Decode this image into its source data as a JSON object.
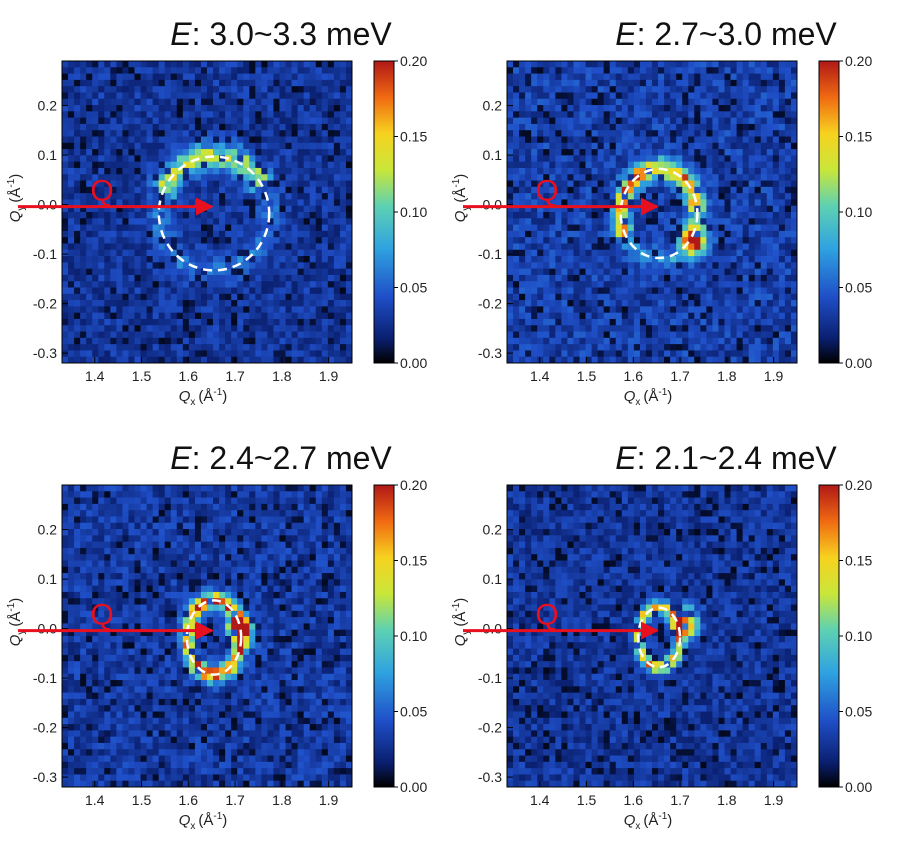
{
  "chart_data": [
    {
      "type": "heatmap",
      "title_prefix": "E",
      "title_range": ": 3.0~3.3 meV",
      "xlabel_main": "Q",
      "xlabel_sub": "x",
      "xlabel_unit": "(Å",
      "xlabel_exp": "-1",
      "xlabel_close": ")",
      "ylabel_main": "Q",
      "ylabel_sub": "y",
      "ylabel_unit": "(Å",
      "ylabel_exp": "-1",
      "ylabel_close": ")",
      "xlim": [
        1.33,
        1.95
      ],
      "ylim": [
        -0.32,
        0.29
      ],
      "xticks": [
        1.4,
        1.5,
        1.6,
        1.7,
        1.8,
        1.9
      ],
      "xtick_labels": [
        "1.4",
        "1.5",
        "1.6",
        "1.7",
        "1.8",
        "1.9"
      ],
      "yticks": [
        0.2,
        0.1,
        0.0,
        -0.1,
        -0.2,
        -0.3
      ],
      "ytick_labels": [
        "0.2",
        "0.1",
        "0.0",
        "-0.1",
        "-0.2",
        "-0.3"
      ],
      "colorbar_range": [
        0.0,
        0.2
      ],
      "colorbar_ticks": [
        0.2,
        0.15,
        0.1,
        0.05,
        0.0
      ],
      "colorbar_labels": [
        "0.20",
        "0.15",
        "0.10",
        "0.05",
        "0.00"
      ],
      "circle": {
        "center_x": 1.655,
        "center_y": -0.018,
        "radius_x": 0.118,
        "radius_y": 0.115,
        "style": "dashed",
        "color": "#ffffff"
      },
      "q_arrow": {
        "label": "Q",
        "color": "#e8101e",
        "from_x": 1.33,
        "to_x": 1.655,
        "at_y": 0.0
      },
      "intensity_features": {
        "background": 0.03,
        "ring_arc": [
          200,
          330
        ],
        "ring_peak": 0.11
      }
    },
    {
      "type": "heatmap",
      "title_prefix": "E",
      "title_range": ": 2.7~3.0 meV",
      "xlabel_main": "Q",
      "xlabel_sub": "x",
      "xlabel_unit": "(Å",
      "xlabel_exp": "-1",
      "xlabel_close": ")",
      "ylabel_main": "Q",
      "ylabel_sub": "y",
      "ylabel_unit": "(Å",
      "ylabel_exp": "-1",
      "ylabel_close": ")",
      "xlim": [
        1.33,
        1.95
      ],
      "ylim": [
        -0.32,
        0.29
      ],
      "xticks": [
        1.4,
        1.5,
        1.6,
        1.7,
        1.8,
        1.9
      ],
      "xtick_labels": [
        "1.4",
        "1.5",
        "1.6",
        "1.7",
        "1.8",
        "1.9"
      ],
      "yticks": [
        0.2,
        0.1,
        0.0,
        -0.1,
        -0.2,
        -0.3
      ],
      "ytick_labels": [
        "0.2",
        "0.1",
        "0.0",
        "-0.1",
        "-0.2",
        "-0.3"
      ],
      "colorbar_range": [
        0.0,
        0.2
      ],
      "colorbar_ticks": [
        0.2,
        0.15,
        0.1,
        0.05,
        0.0
      ],
      "colorbar_labels": [
        "0.20",
        "0.15",
        "0.10",
        "0.05",
        "0.00"
      ],
      "circle": {
        "center_x": 1.655,
        "center_y": -0.018,
        "radius_x": 0.082,
        "radius_y": 0.09,
        "style": "dashed",
        "color": "#ffffff"
      },
      "q_arrow": {
        "label": "Q",
        "color": "#e8101e",
        "from_x": 1.33,
        "to_x": 1.655,
        "at_y": 0.0
      },
      "intensity_features": {
        "background": 0.035,
        "ring_arc": [
          150,
          360
        ],
        "ring_peak": 0.15,
        "hot_spot": [
          1.73,
          -0.07,
          0.2
        ]
      }
    },
    {
      "type": "heatmap",
      "title_prefix": "E",
      "title_range": ": 2.4~2.7 meV",
      "xlabel_main": "Q",
      "xlabel_sub": "x",
      "xlabel_unit": "(Å",
      "xlabel_exp": "-1",
      "xlabel_close": ")",
      "ylabel_main": "Q",
      "ylabel_sub": "y",
      "ylabel_unit": "(Å",
      "ylabel_exp": "-1",
      "ylabel_close": ")",
      "xlim": [
        1.33,
        1.95
      ],
      "ylim": [
        -0.32,
        0.29
      ],
      "xticks": [
        1.4,
        1.5,
        1.6,
        1.7,
        1.8,
        1.9
      ],
      "xtick_labels": [
        "1.4",
        "1.5",
        "1.6",
        "1.7",
        "1.8",
        "1.9"
      ],
      "yticks": [
        0.2,
        0.1,
        0.0,
        -0.1,
        -0.2,
        -0.3
      ],
      "ytick_labels": [
        "0.2",
        "0.1",
        "0.0",
        "-0.1",
        "-0.2",
        "-0.3"
      ],
      "colorbar_range": [
        0.0,
        0.2
      ],
      "colorbar_ticks": [
        0.2,
        0.15,
        0.1,
        0.05,
        0.0
      ],
      "colorbar_labels": [
        "0.20",
        "0.15",
        "0.10",
        "0.05",
        "0.00"
      ],
      "circle": {
        "center_x": 1.655,
        "center_y": -0.018,
        "radius_x": 0.058,
        "radius_y": 0.075,
        "style": "dashed",
        "color": "#ffffff"
      },
      "q_arrow": {
        "label": "Q",
        "color": "#e8101e",
        "from_x": 1.33,
        "to_x": 1.655,
        "at_y": 0.0
      },
      "intensity_features": {
        "background": 0.032,
        "ring_arc": [
          0,
          360
        ],
        "ring_peak": 0.17,
        "hot_spot": [
          1.71,
          0.0,
          0.2
        ]
      }
    },
    {
      "type": "heatmap",
      "title_prefix": "E",
      "title_range": ": 2.1~2.4 meV",
      "xlabel_main": "Q",
      "xlabel_sub": "x",
      "xlabel_unit": "(Å",
      "xlabel_exp": "-1",
      "xlabel_close": ")",
      "ylabel_main": "Q",
      "ylabel_sub": "y",
      "ylabel_unit": "(Å",
      "ylabel_exp": "-1",
      "ylabel_close": ")",
      "xlim": [
        1.33,
        1.95
      ],
      "ylim": [
        -0.32,
        0.29
      ],
      "xticks": [
        1.4,
        1.5,
        1.6,
        1.7,
        1.8,
        1.9
      ],
      "xtick_labels": [
        "1.4",
        "1.5",
        "1.6",
        "1.7",
        "1.8",
        "1.9"
      ],
      "yticks": [
        0.2,
        0.1,
        0.0,
        -0.1,
        -0.2,
        -0.3
      ],
      "ytick_labels": [
        "0.2",
        "0.1",
        "0.0",
        "-0.1",
        "-0.2",
        "-0.3"
      ],
      "colorbar_range": [
        0.0,
        0.2
      ],
      "colorbar_ticks": [
        0.2,
        0.15,
        0.1,
        0.05,
        0.0
      ],
      "colorbar_labels": [
        "0.20",
        "0.15",
        "0.10",
        "0.05",
        "0.00"
      ],
      "circle": {
        "center_x": 1.655,
        "center_y": -0.018,
        "radius_x": 0.045,
        "radius_y": 0.06,
        "style": "dashed",
        "color": "#ffffff"
      },
      "q_arrow": {
        "label": "Q",
        "color": "#e8101e",
        "from_x": 1.33,
        "to_x": 1.655,
        "at_y": 0.0
      },
      "intensity_features": {
        "background": 0.03,
        "ring_arc": [
          0,
          360
        ],
        "ring_peak": 0.14,
        "hot_spot": [
          1.71,
          0.01,
          0.2
        ]
      }
    }
  ]
}
